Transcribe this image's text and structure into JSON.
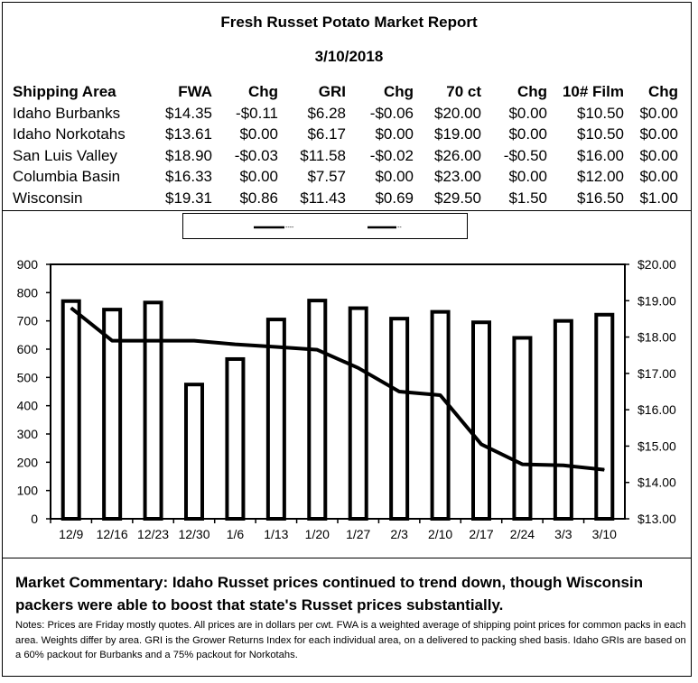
{
  "report": {
    "title": "Fresh Russet Potato Market Report",
    "date": "3/10/2018",
    "headers": [
      "Shipping Area",
      "FWA",
      "Chg",
      "GRI",
      "Chg",
      "70 ct",
      "Chg",
      "10# Film",
      "Chg"
    ],
    "rows": [
      [
        "Idaho Burbanks",
        "$14.35",
        "-$0.11",
        "$6.28",
        "-$0.06",
        "$20.00",
        "$0.00",
        "$10.50",
        "$0.00"
      ],
      [
        "Idaho Norkotahs",
        "$13.61",
        "$0.00",
        "$6.17",
        "$0.00",
        "$19.00",
        "$0.00",
        "$10.50",
        "$0.00"
      ],
      [
        "San Luis Valley",
        "$18.90",
        "-$0.03",
        "$11.58",
        "-$0.02",
        "$26.00",
        "-$0.50",
        "$16.00",
        "$0.00"
      ],
      [
        "Columbia Basin",
        "$16.33",
        "$0.00",
        "$7.57",
        "$0.00",
        "$23.00",
        "$0.00",
        "$12.00",
        "$0.00"
      ],
      [
        "Wisconsin",
        "$19.31",
        "$0.86",
        "$11.43",
        "$0.69",
        "$29.50",
        "$1.50",
        "$16.50",
        "$1.00"
      ]
    ]
  },
  "legend": {
    "entries": [
      {
        "label": "----",
        "style": "line"
      },
      {
        "label": "--",
        "style": "line"
      }
    ]
  },
  "chart_data": {
    "type": "bar",
    "categories": [
      "12/9",
      "12/16",
      "12/23",
      "12/30",
      "1/6",
      "1/13",
      "1/20",
      "1/27",
      "2/3",
      "2/10",
      "2/17",
      "2/24",
      "3/3",
      "3/10"
    ],
    "series": [
      {
        "axis": "left",
        "type": "bar",
        "values": [
          770,
          740,
          765,
          475,
          565,
          705,
          772,
          745,
          708,
          732,
          695,
          640,
          700,
          722
        ]
      },
      {
        "axis": "right",
        "type": "line",
        "values": [
          18.8,
          17.9,
          17.9,
          17.9,
          17.8,
          17.73,
          17.65,
          17.15,
          16.5,
          16.4,
          15.05,
          14.5,
          14.47,
          14.35
        ]
      }
    ],
    "ylim": [
      0,
      900
    ],
    "yticks": [
      0,
      100,
      200,
      300,
      400,
      500,
      600,
      700,
      800,
      900
    ],
    "y2lim": [
      13.0,
      20.0
    ],
    "y2ticks": [
      "$13.00",
      "$14.00",
      "$15.00",
      "$16.00",
      "$17.00",
      "$18.00",
      "$19.00",
      "$20.00"
    ],
    "grid": false,
    "legend_position": "top-center"
  },
  "commentary": "Market Commentary: Idaho Russet prices continued to trend down, though Wisconsin packers were able to boost that state's Russet prices substantially.",
  "notes": "Notes: Prices are Friday mostly quotes. All prices are in dollars per cwt. FWA is a weighted average of shipping point prices for common packs in each area. Weights differ by area. GRI is the Grower Returns Index for each individual area, on a delivered to packing shed basis. Idaho GRIs are based on a 60% packout for Burbanks and a 75% packout for Norkotahs."
}
